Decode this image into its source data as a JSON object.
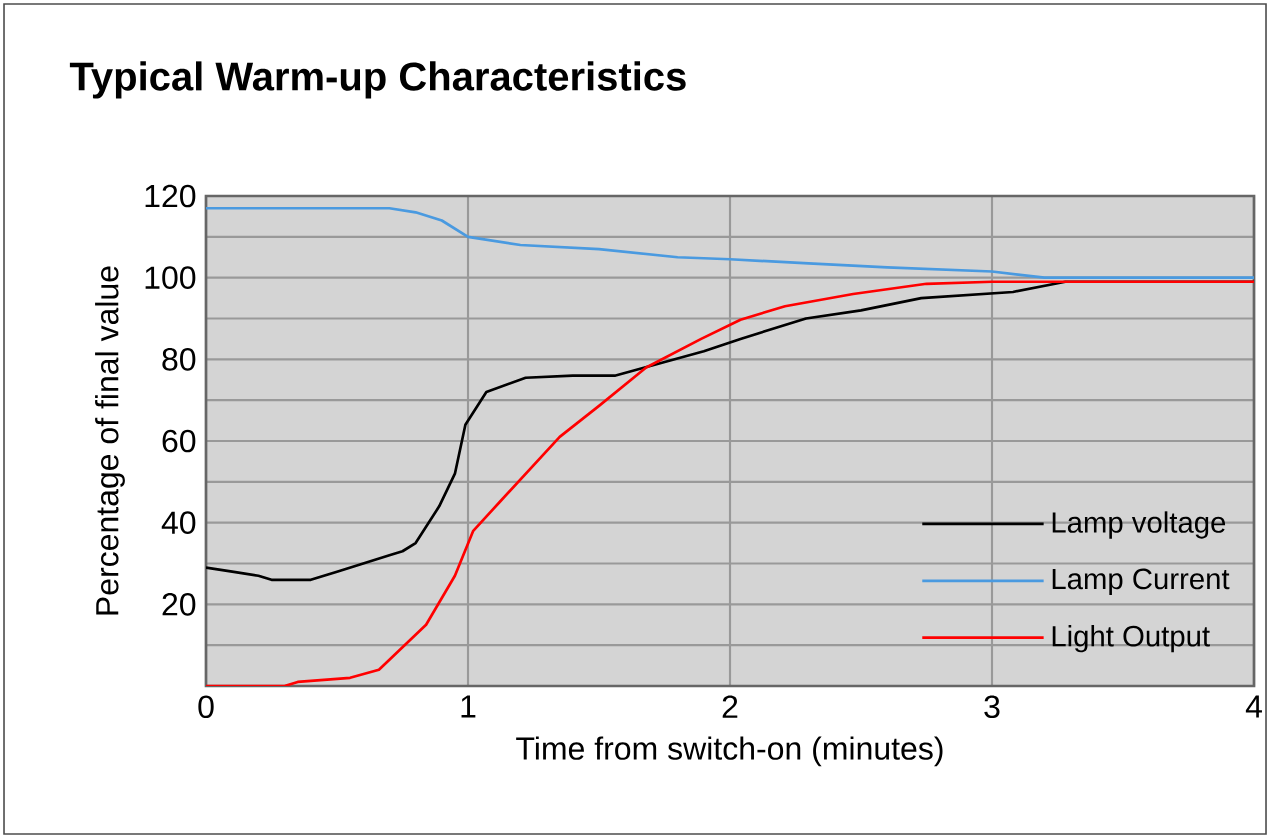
{
  "chart_data": {
    "type": "line",
    "title": "Typical Warm-up Characteristics",
    "xlabel": "Time from switch-on (minutes)",
    "ylabel": "Percentage of final value",
    "xlim": [
      0,
      4
    ],
    "xticks": [
      0,
      1,
      2,
      3,
      4
    ],
    "ylim": [
      0,
      120
    ],
    "yticks": [
      {
        "value": 10,
        "label": null
      },
      20,
      {
        "value": 30,
        "label": null
      },
      40,
      {
        "value": 50,
        "label": null
      },
      60,
      {
        "value": 70,
        "label": null
      },
      80,
      {
        "value": 90,
        "label": null
      },
      100,
      {
        "value": 110,
        "label": null
      },
      120
    ],
    "grid": true,
    "legend": "bottom right",
    "marker": "none",
    "line_style": "solid",
    "series": [
      {
        "name": "Lamp voltage",
        "color": "#000000",
        "x": [
          0,
          0.1,
          0.2,
          0.25,
          0.4,
          0.5,
          0.6,
          0.7,
          0.75,
          0.8,
          0.89,
          0.95,
          0.99,
          1.07,
          1.22,
          1.4,
          1.56,
          1.73,
          1.9,
          2.04,
          2.29,
          2.5,
          2.73,
          3.08,
          3.28,
          3.5,
          4
        ],
        "values": [
          29,
          28,
          27,
          26,
          26,
          28,
          30,
          32,
          33,
          35,
          44,
          52,
          64,
          72,
          75.5,
          76,
          76,
          79,
          82,
          85,
          90,
          92,
          95,
          96.5,
          99,
          null,
          99
        ]
      },
      {
        "name": "Lamp Current",
        "color": "#4a9ae0",
        "x": [
          0,
          0.7,
          0.8,
          0.9,
          1.0,
          1.2,
          1.5,
          1.8,
          2.0,
          2.3,
          2.6,
          3.0,
          3.2,
          4
        ],
        "values": [
          117,
          117,
          116,
          114,
          110,
          108,
          107,
          105,
          104.5,
          103.5,
          102.5,
          101.5,
          100,
          100
        ]
      },
      {
        "name": "Light Output",
        "color": "#ff0000",
        "x": [
          0,
          0.3,
          0.35,
          0.55,
          0.66,
          0.84,
          0.95,
          1.02,
          1.12,
          1.35,
          1.5,
          1.68,
          1.89,
          2.04,
          2.21,
          2.47,
          2.75,
          3.0,
          4
        ],
        "values": [
          0,
          0,
          1,
          2,
          4,
          15,
          27,
          38,
          45,
          61,
          68.6,
          78,
          85,
          89.7,
          93,
          96,
          98.5,
          99,
          99
        ]
      }
    ]
  }
}
